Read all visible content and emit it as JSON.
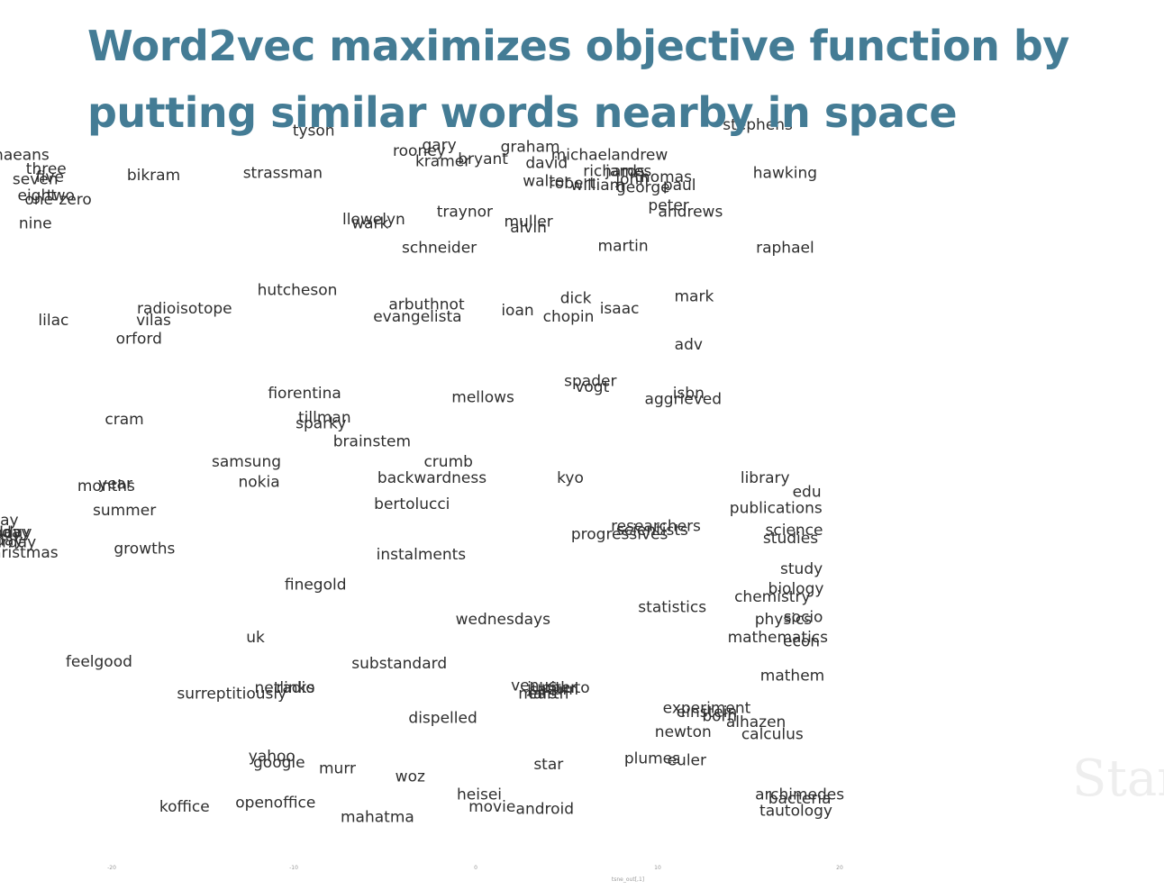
{
  "slide": {
    "title_line1": "Word2vec maximizes objective function by",
    "title_line2": "putting similar words nearby in space",
    "watermark": "Stan"
  },
  "chart_data": {
    "type": "scatter",
    "title": "Word2vec maximizes objective function by putting similar words nearby in space",
    "xlabel": "tsne_out[,1]",
    "ylabel": "",
    "xticks": [
      "-20",
      "-10",
      "0",
      "10",
      "20"
    ],
    "xlim": [
      -30,
      25
    ],
    "ylim": [
      -30,
      22
    ],
    "grid": false,
    "points": [
      {
        "label": "smyrnaeans",
        "x": -26.0,
        "y": 20.6
      },
      {
        "label": "three",
        "x": -23.6,
        "y": 19.9
      },
      {
        "label": "seven",
        "x": -24.2,
        "y": 19.4
      },
      {
        "label": "five",
        "x": -23.4,
        "y": 19.5
      },
      {
        "label": "eight",
        "x": -24.1,
        "y": 18.6
      },
      {
        "label": "one",
        "x": -24.0,
        "y": 18.4
      },
      {
        "label": "two",
        "x": -22.8,
        "y": 18.6
      },
      {
        "label": "zero",
        "x": -22.0,
        "y": 18.4
      },
      {
        "label": "nine",
        "x": -24.2,
        "y": 17.2
      },
      {
        "label": "bikram",
        "x": -17.7,
        "y": 19.6
      },
      {
        "label": "lilac",
        "x": -23.2,
        "y": 12.4
      },
      {
        "label": "vilas",
        "x": -17.7,
        "y": 12.4
      },
      {
        "label": "radioisotope",
        "x": -16.0,
        "y": 13.0
      },
      {
        "label": "orford",
        "x": -18.5,
        "y": 11.5
      },
      {
        "label": "cram",
        "x": -19.3,
        "y": 7.5
      },
      {
        "label": "year",
        "x": -19.8,
        "y": 4.3
      },
      {
        "label": "months",
        "x": -20.3,
        "y": 4.2
      },
      {
        "label": "summer",
        "x": -19.3,
        "y": 3.0
      },
      {
        "label": "growths",
        "x": -18.2,
        "y": 1.1
      },
      {
        "label": "tuesday",
        "x": -26.8,
        "y": 2.5
      },
      {
        "label": "thursday",
        "x": -26.8,
        "y": 1.9
      },
      {
        "label": "monday",
        "x": -26.2,
        "y": 1.9
      },
      {
        "label": "friday",
        "x": -25.6,
        "y": 1.9
      },
      {
        "label": "sunday",
        "x": -26.4,
        "y": 1.5
      },
      {
        "label": "saturday",
        "x": -26.0,
        "y": 1.4
      },
      {
        "label": "christmas",
        "x": -25.0,
        "y": 0.9
      },
      {
        "label": "feelgood",
        "x": -20.7,
        "y": -4.5
      },
      {
        "label": "koffice",
        "x": -16.0,
        "y": -11.7
      },
      {
        "label": "openoffice",
        "x": -11.0,
        "y": -11.5
      },
      {
        "label": "yahoo",
        "x": -11.2,
        "y": -9.2
      },
      {
        "label": "google",
        "x": -10.8,
        "y": -9.5
      },
      {
        "label": "murr",
        "x": -7.6,
        "y": -9.8
      },
      {
        "label": "woz",
        "x": -3.6,
        "y": -10.2
      },
      {
        "label": "mahatma",
        "x": -5.4,
        "y": -12.2
      },
      {
        "label": "surreptitiously",
        "x": -13.4,
        "y": -6.1
      },
      {
        "label": "netlinks",
        "x": -10.5,
        "y": -5.8
      },
      {
        "label": "radio",
        "x": -9.9,
        "y": -5.8
      },
      {
        "label": "uk",
        "x": -12.1,
        "y": -3.3
      },
      {
        "label": "finegold",
        "x": -8.8,
        "y": -0.7
      },
      {
        "label": "substandard",
        "x": -4.2,
        "y": -4.6
      },
      {
        "label": "dispelled",
        "x": -1.8,
        "y": -7.3
      },
      {
        "label": "instalments",
        "x": -3.0,
        "y": 0.8
      },
      {
        "label": "wednesdays",
        "x": 1.5,
        "y": -2.4
      },
      {
        "label": "bertolucci",
        "x": -3.5,
        "y": 3.3
      },
      {
        "label": "crumb",
        "x": -1.5,
        "y": 5.4
      },
      {
        "label": "backwardness",
        "x": -2.4,
        "y": 4.6
      },
      {
        "label": "kyo",
        "x": 5.2,
        "y": 4.6
      },
      {
        "label": "samsung",
        "x": -12.6,
        "y": 5.4
      },
      {
        "label": "nokia",
        "x": -11.9,
        "y": 4.4
      },
      {
        "label": "brainstem",
        "x": -5.7,
        "y": 6.4
      },
      {
        "label": "tillman",
        "x": -8.3,
        "y": 7.6
      },
      {
        "label": "sparky",
        "x": -8.5,
        "y": 7.3
      },
      {
        "label": "fiorentina",
        "x": -9.4,
        "y": 8.8
      },
      {
        "label": "mellows",
        "x": 0.4,
        "y": 8.6
      },
      {
        "label": "hutcheson",
        "x": -9.8,
        "y": 13.9
      },
      {
        "label": "arbuthnot",
        "x": -2.7,
        "y": 13.2
      },
      {
        "label": "evangelista",
        "x": -3.2,
        "y": 12.6
      },
      {
        "label": "ioan",
        "x": 2.3,
        "y": 12.9
      },
      {
        "label": "dick",
        "x": 5.5,
        "y": 13.5
      },
      {
        "label": "chopin",
        "x": 5.1,
        "y": 12.6
      },
      {
        "label": "strassman",
        "x": -10.6,
        "y": 19.7
      },
      {
        "label": "tyson",
        "x": -8.9,
        "y": 21.8
      },
      {
        "label": "llewelyn",
        "x": -5.6,
        "y": 17.4
      },
      {
        "label": "wark",
        "x": -5.8,
        "y": 17.2
      },
      {
        "label": "traynor",
        "x": -0.6,
        "y": 17.8
      },
      {
        "label": "schneider",
        "x": -2.0,
        "y": 16.0
      },
      {
        "label": "muller",
        "x": 2.9,
        "y": 17.3
      },
      {
        "label": "alvin",
        "x": 2.9,
        "y": 17.0
      },
      {
        "label": "rooney",
        "x": -3.1,
        "y": 20.8
      },
      {
        "label": "gary",
        "x": -2.0,
        "y": 21.1
      },
      {
        "label": "kramer",
        "x": -1.8,
        "y": 20.3
      },
      {
        "label": "bryant",
        "x": 0.4,
        "y": 20.4
      },
      {
        "label": "graham",
        "x": 3.0,
        "y": 21.0
      },
      {
        "label": "david",
        "x": 3.9,
        "y": 20.2
      },
      {
        "label": "michael",
        "x": 5.8,
        "y": 20.6
      },
      {
        "label": "andrew",
        "x": 9.0,
        "y": 20.6
      },
      {
        "label": "richards",
        "x": 7.6,
        "y": 19.8
      },
      {
        "label": "james",
        "x": 8.4,
        "y": 19.8
      },
      {
        "label": "thomas",
        "x": 10.3,
        "y": 19.5
      },
      {
        "label": "walter",
        "x": 3.9,
        "y": 19.3
      },
      {
        "label": "robert",
        "x": 5.3,
        "y": 19.2
      },
      {
        "label": "william",
        "x": 6.7,
        "y": 19.1
      },
      {
        "label": "john",
        "x": 8.6,
        "y": 19.4
      },
      {
        "label": "george",
        "x": 9.2,
        "y": 19.0
      },
      {
        "label": "paul",
        "x": 11.2,
        "y": 19.1
      },
      {
        "label": "peter",
        "x": 10.6,
        "y": 18.1
      },
      {
        "label": "andrews",
        "x": 11.8,
        "y": 17.8
      },
      {
        "label": "martin",
        "x": 8.1,
        "y": 16.1
      },
      {
        "label": "isaac",
        "x": 7.9,
        "y": 13.0
      },
      {
        "label": "mark",
        "x": 12.0,
        "y": 13.6
      },
      {
        "label": "adv",
        "x": 11.7,
        "y": 11.2
      },
      {
        "label": "spader",
        "x": 6.3,
        "y": 9.4
      },
      {
        "label": "vogt",
        "x": 6.4,
        "y": 9.1
      },
      {
        "label": "isbn",
        "x": 11.7,
        "y": 8.8
      },
      {
        "label": "aggrieved",
        "x": 11.4,
        "y": 8.5
      },
      {
        "label": "library",
        "x": 15.9,
        "y": 4.6
      },
      {
        "label": "hawking",
        "x": 17.0,
        "y": 19.7
      },
      {
        "label": "raphael",
        "x": 17.0,
        "y": 16.0
      },
      {
        "label": "stephens",
        "x": 15.5,
        "y": 22.1
      },
      {
        "label": "researchers",
        "x": 9.9,
        "y": 2.2
      },
      {
        "label": "scientists",
        "x": 9.7,
        "y": 2.0
      },
      {
        "label": "progressives",
        "x": 7.9,
        "y": 1.8
      },
      {
        "label": "statistics",
        "x": 10.8,
        "y": -1.8
      },
      {
        "label": "edu",
        "x": 18.2,
        "y": 3.9
      },
      {
        "label": "publications",
        "x": 16.5,
        "y": 3.1
      },
      {
        "label": "science",
        "x": 17.5,
        "y": 2.0
      },
      {
        "label": "studies",
        "x": 17.3,
        "y": 1.6
      },
      {
        "label": "study",
        "x": 17.9,
        "y": 0.1
      },
      {
        "label": "biology",
        "x": 17.6,
        "y": -0.9
      },
      {
        "label": "chemistry",
        "x": 16.3,
        "y": -1.3
      },
      {
        "label": "physics",
        "x": 16.9,
        "y": -2.4
      },
      {
        "label": "socio",
        "x": 18.0,
        "y": -2.3
      },
      {
        "label": "mathematics",
        "x": 16.6,
        "y": -3.3
      },
      {
        "label": "econ",
        "x": 17.9,
        "y": -3.5
      },
      {
        "label": "mathem",
        "x": 17.4,
        "y": -5.2
      },
      {
        "label": "experiment",
        "x": 12.7,
        "y": -6.8
      },
      {
        "label": "einstein",
        "x": 12.7,
        "y": -7.0
      },
      {
        "label": "born",
        "x": 13.4,
        "y": -7.2
      },
      {
        "label": "alhazen",
        "x": 15.4,
        "y": -7.5
      },
      {
        "label": "newton",
        "x": 11.4,
        "y": -8.0
      },
      {
        "label": "calculus",
        "x": 16.3,
        "y": -8.1
      },
      {
        "label": "plumes",
        "x": 9.7,
        "y": -9.3
      },
      {
        "label": "euler",
        "x": 11.6,
        "y": -9.4
      },
      {
        "label": "venus",
        "x": 3.2,
        "y": -5.7
      },
      {
        "label": "jupiter",
        "x": 4.2,
        "y": -5.8
      },
      {
        "label": "saturn",
        "x": 4.3,
        "y": -5.9
      },
      {
        "label": "pluto",
        "x": 5.2,
        "y": -5.8
      },
      {
        "label": "mars",
        "x": 3.4,
        "y": -6.1
      },
      {
        "label": "earth",
        "x": 4.0,
        "y": -6.1
      },
      {
        "label": "star",
        "x": 4.0,
        "y": -9.6
      },
      {
        "label": "heisei",
        "x": 0.2,
        "y": -11.1
      },
      {
        "label": "movie",
        "x": 0.9,
        "y": -11.7
      },
      {
        "label": "android",
        "x": 3.8,
        "y": -11.8
      },
      {
        "label": "archimedes",
        "x": 17.8,
        "y": -11.1
      },
      {
        "label": "bacteria",
        "x": 17.8,
        "y": -11.3
      },
      {
        "label": "tautology",
        "x": 17.6,
        "y": -11.9
      }
    ]
  }
}
